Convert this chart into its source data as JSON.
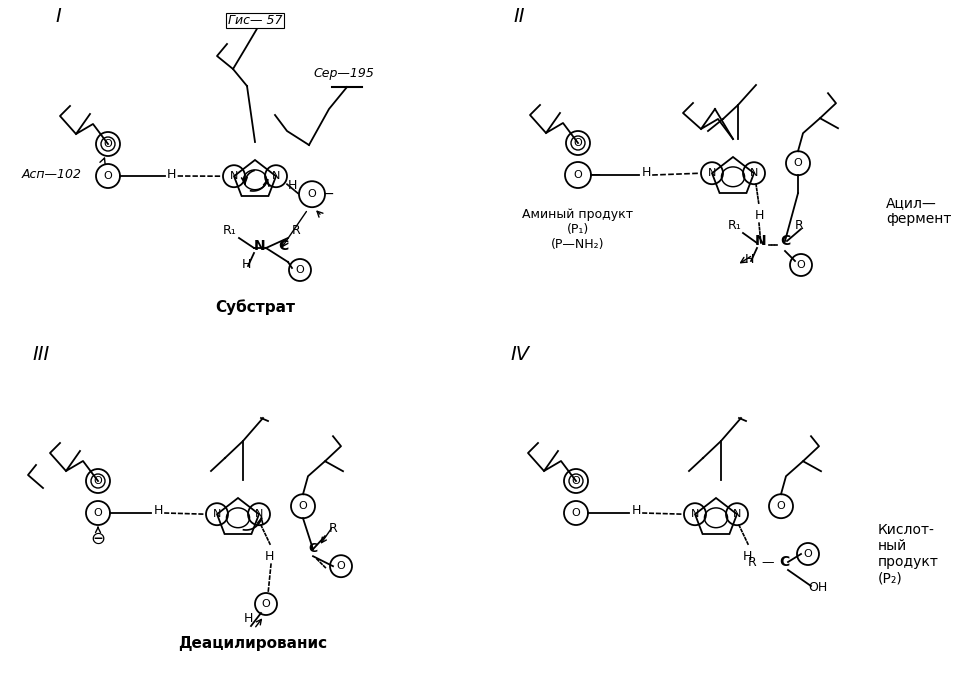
{
  "bg": "#ffffff",
  "text_his57": "Гис— 57",
  "text_ser195": "Сер—195",
  "text_asp102": "Асп—102",
  "text_substrate": "Субстрат",
  "text_deacyl": "Деацилированис",
  "text_aminoprod1": "Аминый продукт",
  "text_aminoprod2": "(Р₁)",
  "text_aminoprod3": "(Р—NH₂)",
  "text_acylenz": "Ацил—\nфермент",
  "text_acidprod": "Кислот-\nный\nпродукт\n(Р₂)"
}
